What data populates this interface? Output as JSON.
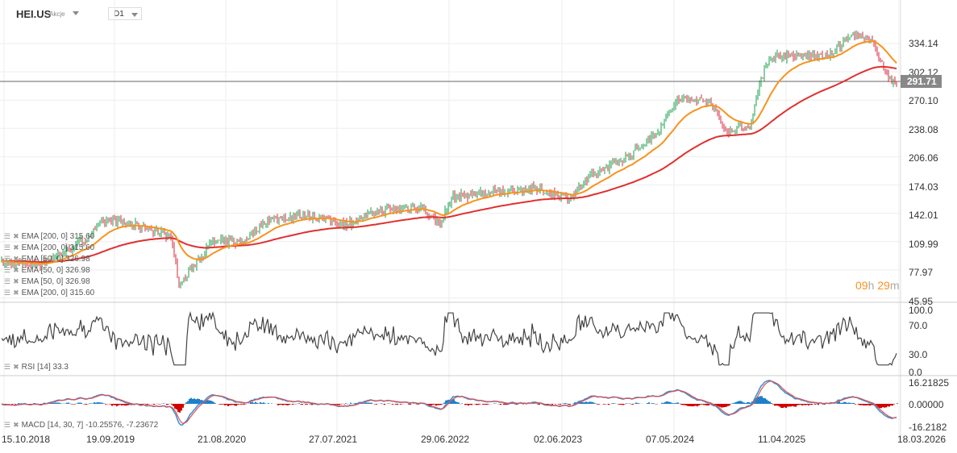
{
  "header": {
    "symbol": "HEI.US",
    "type": "Akcje",
    "timeframe": "D1"
  },
  "price_axis": [
    "334.14",
    "302.12",
    "270.10",
    "238.08",
    "206.06",
    "174.03",
    "142.01",
    "109.99",
    "77.97",
    "45.95"
  ],
  "last_price": "291.71",
  "countdown": {
    "h": "09",
    "hu": "h",
    "m": "29",
    "mu": "m"
  },
  "legends": [
    "EMA [200, 0] 315.60",
    "EMA [200, 0] 315.60",
    "EMA [50, 0] 326.98",
    "EMA [50, 0] 326.98",
    "EMA [50, 0] 326.98",
    "EMA [200, 0] 315.60"
  ],
  "rsi": {
    "label": "RSI [14] 33.3",
    "axis": [
      "100.0",
      "70.0",
      "30.0",
      "0.0"
    ]
  },
  "macd": {
    "label": "MACD [14, 30, 7] -10.25576, -7.23672",
    "axis": [
      "16.21825",
      "0.00000",
      "-16.2182"
    ]
  },
  "dates": [
    "15.10.2018",
    "19.09.2019",
    "21.08.2020",
    "27.07.2021",
    "29.06.2022",
    "02.06.2023",
    "07.05.2024",
    "11.04.2025",
    "18.03.2026"
  ],
  "colors": {
    "ema50": "#f7931e",
    "ema200": "#e03030",
    "up": "#1a9c4a",
    "down": "#d9263a",
    "rsi": "#444",
    "macd_pos": "#1f7fc8",
    "macd_neg": "#d00000"
  },
  "chart_data": {
    "type": "line",
    "title": "HEI.US D1",
    "ylim": [
      45.95,
      350
    ],
    "anchors_year": [
      2018.79,
      2019.12,
      2019.46,
      2019.66,
      2020.02,
      2020.2,
      2020.26,
      2020.42,
      2020.54,
      2020.79,
      2020.99,
      2021.32,
      2021.66,
      2021.92,
      2022.26,
      2022.42,
      2022.53,
      2022.79,
      2023.19,
      2023.5,
      2023.69,
      2024.02,
      2024.23,
      2024.39,
      2024.66,
      2024.79,
      2024.99,
      2025.12,
      2025.18,
      2025.32,
      2025.45,
      2025.65,
      2025.85,
      2025.92,
      2026.02,
      2026.15
    ],
    "anchors_price": [
      85,
      85,
      110,
      135,
      125,
      115,
      60,
      90,
      110,
      110,
      135,
      140,
      130,
      145,
      150,
      130,
      160,
      165,
      170,
      160,
      185,
      210,
      235,
      270,
      270,
      235,
      240,
      310,
      320,
      320,
      320,
      320,
      345,
      340,
      335,
      292
    ]
  }
}
